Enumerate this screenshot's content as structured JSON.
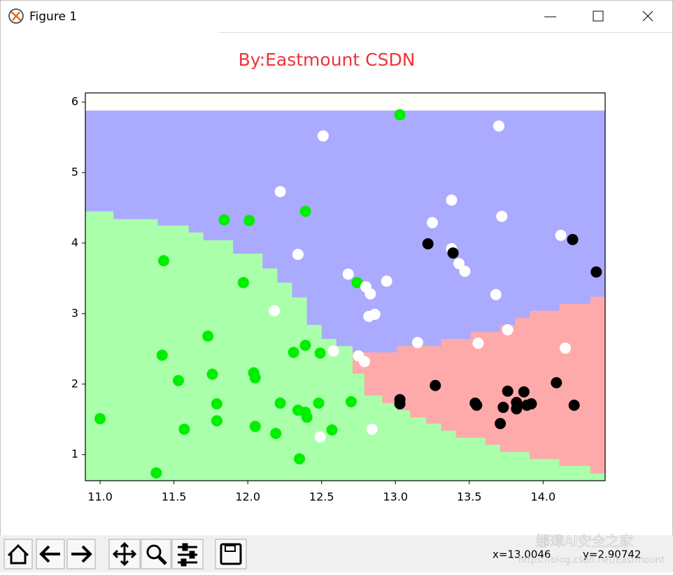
{
  "window": {
    "title": "Figure 1"
  },
  "chart_data": {
    "type": "scatter",
    "title": "By:Eastmount CSDN",
    "title_color": "#ee3338",
    "xlim": [
      10.9,
      14.42
    ],
    "ylim": [
      0.63,
      6.13
    ],
    "xticks": [
      {
        "value": 11,
        "label": "11.0"
      },
      {
        "value": 11.5,
        "label": "11.5"
      },
      {
        "value": 12,
        "label": "12.0"
      },
      {
        "value": 12.5,
        "label": "12.5"
      },
      {
        "value": 13,
        "label": "13.0"
      },
      {
        "value": 13.5,
        "label": "13.5"
      },
      {
        "value": 14,
        "label": "14.0"
      }
    ],
    "yticks": [
      1,
      2,
      3,
      4,
      5,
      6
    ],
    "regions": [
      {
        "color": "#aaaaff",
        "x": [
          10.9,
          14.42,
          14.42,
          10.9
        ],
        "y": [
          0.63,
          0.63,
          5.88,
          5.88
        ]
      },
      {
        "color": "#aaffaa",
        "x": [
          10.9,
          10.9,
          11.09,
          11.09,
          11.39,
          11.39,
          11.6,
          11.6,
          11.7,
          11.7,
          11.9,
          11.9,
          12.1,
          12.1,
          12.2,
          12.2,
          12.3,
          12.3,
          12.4,
          12.4,
          12.5,
          12.5,
          12.6,
          12.6,
          12.71,
          12.71,
          12.79,
          12.79,
          12.91,
          12.91,
          13.01,
          13.01,
          13.1,
          13.1,
          13.21,
          13.21,
          13.31,
          13.31,
          13.41,
          13.41,
          13.61,
          13.61,
          13.71,
          13.71,
          13.91,
          13.91,
          14.11,
          14.11,
          14.32,
          14.32,
          14.42,
          14.42
        ],
        "y": [
          0.63,
          4.45,
          4.45,
          4.34,
          4.34,
          4.25,
          4.25,
          4.15,
          4.15,
          4.04,
          4.04,
          3.85,
          3.85,
          3.64,
          3.64,
          3.44,
          3.44,
          3.23,
          3.23,
          2.84,
          2.84,
          2.64,
          2.64,
          2.54,
          2.54,
          2.15,
          2.15,
          1.84,
          1.84,
          1.73,
          1.73,
          1.63,
          1.63,
          1.53,
          1.53,
          1.44,
          1.44,
          1.34,
          1.34,
          1.24,
          1.24,
          1.14,
          1.14,
          1.04,
          1.04,
          0.94,
          0.94,
          0.84,
          0.84,
          0.73,
          0.73,
          0.63
        ]
      },
      {
        "color": "#ffaaaa",
        "x": [
          12.71,
          13.01,
          13.01,
          13.31,
          13.31,
          13.51,
          13.51,
          13.71,
          13.71,
          13.81,
          13.81,
          13.91,
          13.91,
          14.11,
          14.11,
          14.32,
          14.32,
          14.42,
          14.42,
          14.32,
          14.32,
          14.11,
          14.11,
          13.91,
          13.91,
          13.71,
          13.71,
          13.61,
          13.61,
          13.41,
          13.41,
          13.31,
          13.31,
          13.21,
          13.21,
          13.1,
          13.1,
          13.01,
          13.01,
          12.91,
          12.91,
          12.79,
          12.79,
          12.71
        ],
        "y": [
          2.45,
          2.45,
          2.54,
          2.54,
          2.64,
          2.64,
          2.74,
          2.74,
          2.84,
          2.84,
          2.94,
          2.94,
          3.04,
          3.04,
          3.14,
          3.14,
          3.24,
          3.24,
          0.73,
          0.73,
          0.84,
          0.84,
          0.94,
          0.94,
          1.04,
          1.04,
          1.14,
          1.14,
          1.24,
          1.24,
          1.34,
          1.34,
          1.44,
          1.44,
          1.53,
          1.53,
          1.63,
          1.63,
          1.73,
          1.73,
          1.84,
          1.84,
          2.15,
          2.15
        ]
      }
    ],
    "series": [
      {
        "color": "#00ee00",
        "x": [
          13.03,
          12.39,
          11.84,
          12.01,
          11.43,
          11.97,
          12.74,
          11.73,
          12.39,
          12.31,
          12.49,
          11.42,
          12.04,
          11.76,
          12.05,
          11.53,
          12.22,
          12.48,
          12.7,
          11.79,
          12.34,
          12.39,
          12.4,
          11.79,
          12.05,
          12.57,
          11.57,
          12.19,
          11.0,
          12.35,
          11.38
        ],
        "y": [
          5.82,
          4.45,
          4.33,
          4.32,
          3.75,
          3.44,
          3.44,
          2.68,
          2.55,
          2.45,
          2.44,
          2.41,
          2.16,
          2.14,
          2.09,
          2.05,
          1.73,
          1.73,
          1.75,
          1.72,
          1.63,
          1.6,
          1.53,
          1.48,
          1.4,
          1.35,
          1.36,
          1.3,
          1.51,
          0.94,
          0.74
        ]
      },
      {
        "color": "#ffffff",
        "x": [
          12.51,
          13.7,
          12.22,
          13.38,
          13.25,
          13.72,
          12.34,
          13.38,
          13.43,
          13.47,
          14.12,
          12.68,
          12.8,
          12.94,
          12.83,
          13.68,
          12.18,
          12.86,
          12.82,
          13.76,
          13.15,
          13.56,
          14.15,
          12.58,
          12.75,
          12.79,
          12.84,
          12.49
        ],
        "y": [
          5.52,
          5.66,
          4.73,
          4.61,
          4.29,
          4.38,
          3.84,
          3.92,
          3.71,
          3.6,
          4.11,
          3.56,
          3.38,
          3.46,
          3.28,
          3.27,
          3.04,
          2.99,
          2.96,
          2.77,
          2.59,
          2.58,
          2.51,
          2.47,
          2.4,
          2.32,
          1.36,
          1.25
        ]
      },
      {
        "color": "#000000",
        "x": [
          13.22,
          13.39,
          14.2,
          14.36,
          13.27,
          13.03,
          13.03,
          14.09,
          13.76,
          13.87,
          13.54,
          13.55,
          13.73,
          13.82,
          13.92,
          13.89,
          13.82,
          14.21,
          13.71
        ],
        "y": [
          3.99,
          3.86,
          4.05,
          3.59,
          1.98,
          1.78,
          1.72,
          2.02,
          1.9,
          1.89,
          1.73,
          1.7,
          1.67,
          1.74,
          1.72,
          1.7,
          1.65,
          1.7,
          1.44
        ]
      }
    ]
  },
  "status": {
    "x": "x=13.0046",
    "y": "y=2.90742"
  },
  "watermark": {
    "name": "娜璋AI安全之家",
    "url": "https://blog.csdn.net/Eastmount"
  }
}
